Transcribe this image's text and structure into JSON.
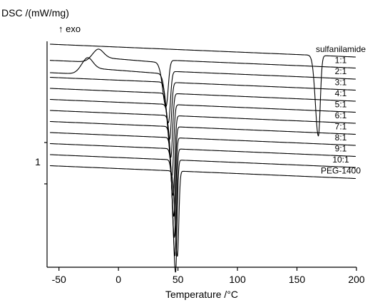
{
  "chart_data": {
    "type": "line",
    "ylabel": "DSC /(mW/mg)",
    "exo_marker": "↑ exo",
    "xlabel": "Temperature /°C",
    "xlim": [
      -60,
      200
    ],
    "xticks": [
      -50,
      0,
      50,
      100,
      150,
      200
    ],
    "scale_bar_label": "1",
    "grid": false,
    "series": [
      {
        "name": "sulfanilamide",
        "peak_c": 168,
        "depth": 113,
        "width": 2.6,
        "asym": 1.6
      },
      {
        "name": "1:1",
        "peak_c": 40,
        "depth": 65,
        "width": 3.0,
        "asym": 1.6,
        "exo_c": -18,
        "exo_h": 16
      },
      {
        "name": "2:1",
        "peak_c": 42,
        "depth": 72,
        "width": 2.7,
        "asym": 1.6,
        "exo_c": -27,
        "exo_h": 20
      },
      {
        "name": "3:1",
        "peak_c": 43,
        "depth": 80,
        "width": 2.5,
        "asym": 1.6
      },
      {
        "name": "4:1",
        "peak_c": 44,
        "depth": 90,
        "width": 2.4,
        "asym": 1.6
      },
      {
        "name": "5:1",
        "peak_c": 45,
        "depth": 100,
        "width": 2.3,
        "asym": 1.6
      },
      {
        "name": "6:1",
        "peak_c": 46,
        "depth": 112,
        "width": 2.2,
        "asym": 1.6
      },
      {
        "name": "7:1",
        "peak_c": 46.5,
        "depth": 126,
        "width": 2.1,
        "asym": 1.6
      },
      {
        "name": "8:1",
        "peak_c": 47,
        "depth": 140,
        "width": 2.0,
        "asym": 1.6
      },
      {
        "name": "9:1",
        "peak_c": 47.5,
        "depth": 150,
        "width": 2.0,
        "asym": 1.6
      },
      {
        "name": "10:1",
        "peak_c": 48,
        "depth": 158,
        "width": 2.0,
        "asym": 1.6
      },
      {
        "name": "PEG-1400",
        "peak_c": 49.5,
        "depth": 120,
        "width": 2.0,
        "asym": 1.6
      }
    ]
  }
}
